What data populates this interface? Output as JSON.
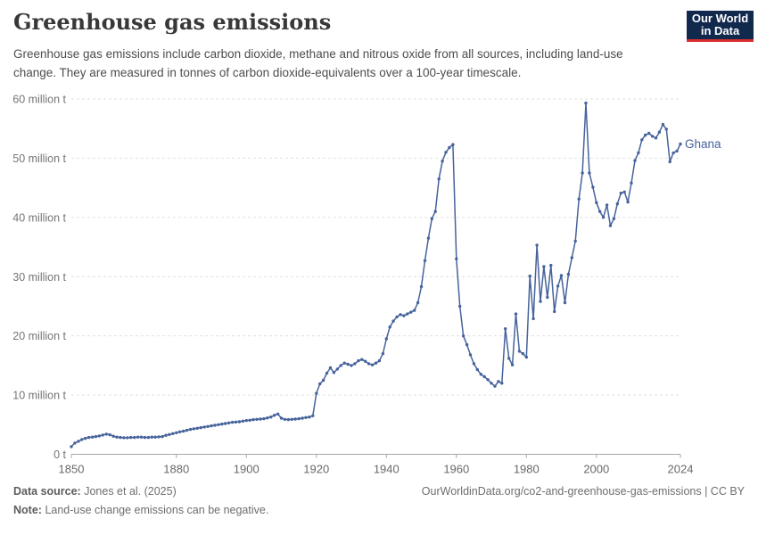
{
  "header": {
    "title": "Greenhouse gas emissions",
    "subtitle": "Greenhouse gas emissions include carbon dioxide, methane and nitrous oxide from all sources, including land-use change. They are measured in tonnes of carbon dioxide-equivalents over a 100-year timescale.",
    "logo_line1": "Our World",
    "logo_line2": "in Data"
  },
  "chart_data": {
    "type": "line",
    "title": "Greenhouse gas emissions",
    "grid": "horizontal-dashed",
    "legend_position": "inline-end-of-line",
    "line_color": "#46639b",
    "xlim": [
      1850,
      2024
    ],
    "ylim_million_t": [
      0,
      60
    ],
    "xticks": [
      1850,
      1880,
      1900,
      1920,
      1940,
      1960,
      1980,
      2000,
      2024
    ],
    "yticks": [
      {
        "value": 0,
        "label": "0 t"
      },
      {
        "value": 10,
        "label": "10 million t"
      },
      {
        "value": 20,
        "label": "20 million t"
      },
      {
        "value": 30,
        "label": "30 million t"
      },
      {
        "value": 40,
        "label": "40 million t"
      },
      {
        "value": 50,
        "label": "50 million t"
      },
      {
        "value": 60,
        "label": "60 million t"
      }
    ],
    "series": [
      {
        "name": "Ghana",
        "color": "#46639b",
        "start_year": 1850,
        "end_year": 2024,
        "values_million_t": [
          1.3,
          1.9,
          2.2,
          2.5,
          2.7,
          2.85,
          2.9,
          3.0,
          3.1,
          3.25,
          3.4,
          3.3,
          3.05,
          2.9,
          2.85,
          2.8,
          2.8,
          2.85,
          2.85,
          2.9,
          2.9,
          2.85,
          2.85,
          2.9,
          2.9,
          2.95,
          3.0,
          3.2,
          3.35,
          3.5,
          3.65,
          3.8,
          3.9,
          4.05,
          4.2,
          4.3,
          4.4,
          4.5,
          4.6,
          4.7,
          4.8,
          4.9,
          5.0,
          5.1,
          5.2,
          5.3,
          5.4,
          5.45,
          5.5,
          5.6,
          5.7,
          5.75,
          5.85,
          5.9,
          5.95,
          6.0,
          6.15,
          6.3,
          6.6,
          6.8,
          6.1,
          5.9,
          5.85,
          5.9,
          5.95,
          6.0,
          6.1,
          6.2,
          6.3,
          6.5,
          10.3,
          11.9,
          12.5,
          13.7,
          14.6,
          13.8,
          14.4,
          15.0,
          15.4,
          15.2,
          15.0,
          15.3,
          15.8,
          16.0,
          15.7,
          15.3,
          15.1,
          15.4,
          15.8,
          17.0,
          19.5,
          21.5,
          22.5,
          23.2,
          23.6,
          23.4,
          23.7,
          24.0,
          24.3,
          25.6,
          28.3,
          32.7,
          36.5,
          39.8,
          41.0,
          46.5,
          49.5,
          51.0,
          51.8,
          52.3,
          33.0,
          25.0,
          20.0,
          18.5,
          16.8,
          15.3,
          14.3,
          13.5,
          13.1,
          12.6,
          12.0,
          11.5,
          12.3,
          12.0,
          21.2,
          16.2,
          15.1,
          23.7,
          17.4,
          17.0,
          16.4,
          30.1,
          22.9,
          35.3,
          25.8,
          31.7,
          26.5,
          31.9,
          24.1,
          28.4,
          30.2,
          25.6,
          30.4,
          33.2,
          36.0,
          43.1,
          47.5,
          59.3,
          47.5,
          45.1,
          42.5,
          41.0,
          40.0,
          42.1,
          38.6,
          39.8,
          42.3,
          44.1,
          44.3,
          42.6,
          45.8,
          49.6,
          50.9,
          53.1,
          53.9,
          54.2,
          53.7,
          53.4,
          54.4,
          55.7,
          54.9,
          49.4,
          50.9,
          51.2,
          52.4
        ]
      }
    ]
  },
  "footer": {
    "source_label": "Data source:",
    "source_value": "Jones et al. (2025)",
    "url_text": "OurWorldinData.org/co2-and-greenhouse-gas-emissions | CC BY",
    "note_label": "Note:",
    "note_value": "Land-use change emissions can be negative."
  }
}
